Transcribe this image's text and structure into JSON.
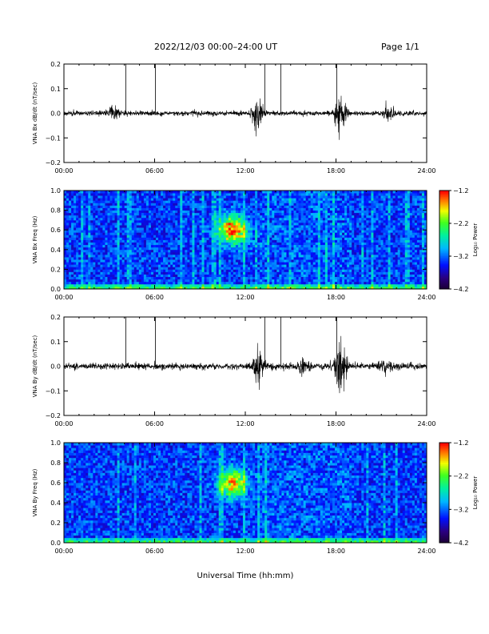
{
  "header": {
    "title": "2022/12/03  00:00–24:00 UT",
    "page": "Page 1/1"
  },
  "chart_data": [
    {
      "type": "line",
      "ylabel": "VNA Bx dB/dt (nT/sec)",
      "xlim": [
        0,
        24
      ],
      "ylim": [
        -0.2,
        0.2
      ],
      "x_ticks": [
        "00:00",
        "06:00",
        "12:00",
        "18:00",
        "24:00"
      ],
      "y_ticks": [
        "−0.2",
        "−0.1",
        "0.0",
        "0.1",
        "0.2"
      ],
      "baseline_amplitude": 0.012,
      "spikes_hours": [
        4.1,
        6.05,
        13.3,
        14.35,
        18.05
      ],
      "bursts": [
        {
          "center_hours": 3.3,
          "amplitude": 0.04
        },
        {
          "center_hours": 12.8,
          "amplitude": 0.12
        },
        {
          "center_hours": 18.3,
          "amplitude": 0.14
        },
        {
          "center_hours": 21.5,
          "amplitude": 0.05
        }
      ]
    },
    {
      "type": "heatmap",
      "ylabel": "VNA Bx Freq (Hz)",
      "xlim": [
        0,
        24
      ],
      "ylim": [
        0.0,
        1.0
      ],
      "x_ticks": [
        "00:00",
        "06:00",
        "12:00",
        "18:00",
        "24:00"
      ],
      "y_ticks": [
        "0.0",
        "0.2",
        "0.4",
        "0.6",
        "0.8",
        "1.0"
      ],
      "colorbar": {
        "label": "Log₁₀ Power",
        "range": [
          -4.2,
          -1.2
        ],
        "ticks": [
          "−1.2",
          "−2.2",
          "−3.2",
          "−4.2"
        ]
      },
      "hotspot": {
        "time_hours": 11.2,
        "freq_hz": 0.6,
        "log_power": -1.2
      }
    },
    {
      "type": "line",
      "ylabel": "VNA By dB/dt (nT/sec)",
      "xlim": [
        0,
        24
      ],
      "ylim": [
        -0.2,
        0.2
      ],
      "x_ticks": [
        "00:00",
        "06:00",
        "12:00",
        "18:00",
        "24:00"
      ],
      "y_ticks": [
        "−0.2",
        "−0.1",
        "0.0",
        "0.1",
        "0.2"
      ],
      "baseline_amplitude": 0.015,
      "spikes_hours": [
        4.1,
        6.05,
        13.3,
        14.35,
        18.05
      ],
      "bursts": [
        {
          "center_hours": 12.9,
          "amplitude": 0.12
        },
        {
          "center_hours": 15.8,
          "amplitude": 0.06
        },
        {
          "center_hours": 18.3,
          "amplitude": 0.2
        },
        {
          "center_hours": 21.3,
          "amplitude": 0.04
        }
      ]
    },
    {
      "type": "heatmap",
      "ylabel": "VNA By Freq (Hz)",
      "xlim": [
        0,
        24
      ],
      "ylim": [
        0.0,
        1.0
      ],
      "x_ticks": [
        "00:00",
        "06:00",
        "12:00",
        "18:00",
        "24:00"
      ],
      "y_ticks": [
        "0.0",
        "0.2",
        "0.4",
        "0.6",
        "0.8",
        "1.0"
      ],
      "colorbar": {
        "label": "Log₁₀ Power",
        "range": [
          -4.2,
          -1.2
        ],
        "ticks": [
          "−1.2",
          "−2.2",
          "−3.2",
          "−4.2"
        ]
      },
      "hotspot": {
        "time_hours": 11.2,
        "freq_hz": 0.6,
        "log_power": -1.6
      }
    }
  ],
  "xlabel": "Universal Time (hh:mm)"
}
